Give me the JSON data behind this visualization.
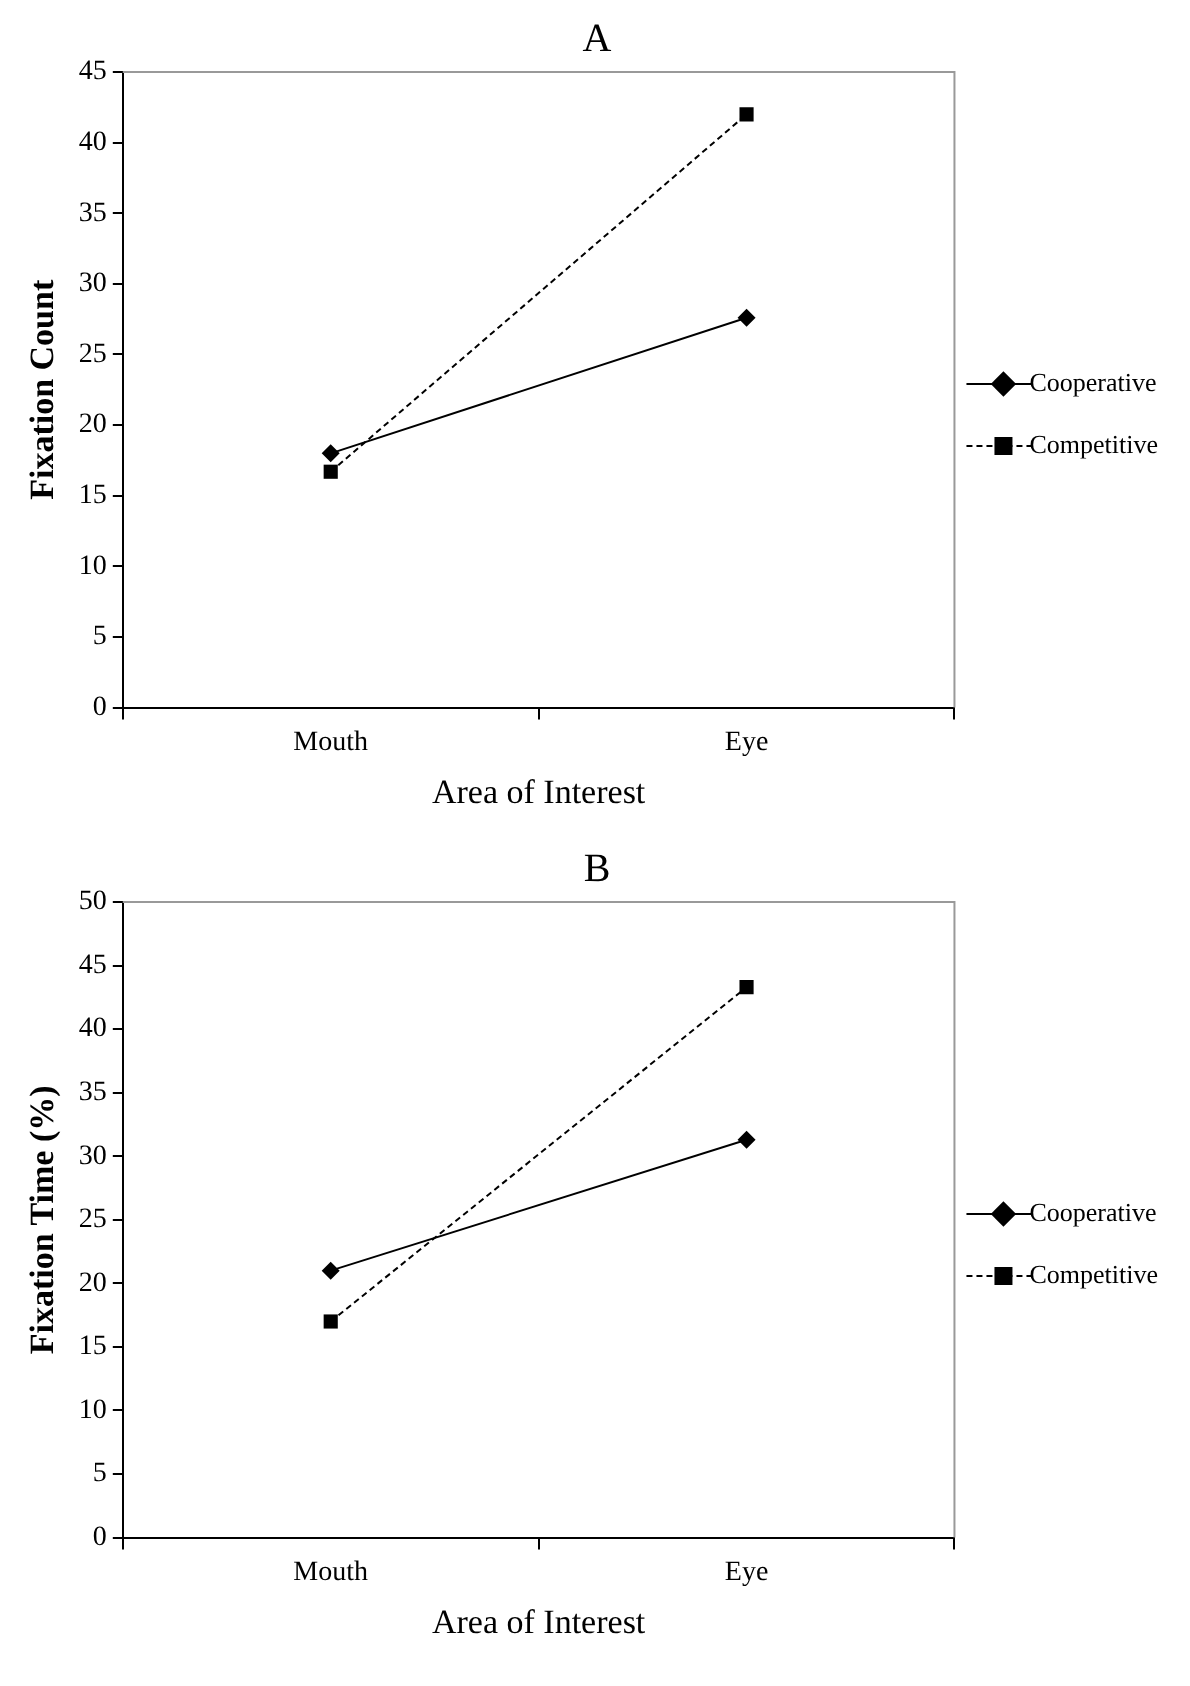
{
  "chart_data": [
    {
      "type": "line",
      "title": "A",
      "xlabel": "Area of Interest",
      "ylabel": "Fixation Count",
      "categories": [
        "Mouth",
        "Eye"
      ],
      "ylim": [
        0,
        45
      ],
      "yticks": [
        0,
        5,
        10,
        15,
        20,
        25,
        30,
        35,
        40,
        45
      ],
      "grid": false,
      "legend": "right",
      "series": [
        {
          "name": "Cooperative",
          "color": "#000000",
          "values": [
            18,
            27.6
          ],
          "marker": "diamond",
          "line_style": "solid"
        },
        {
          "name": "Competitive",
          "color": "#000000",
          "values": [
            16.7,
            42
          ],
          "marker": "square",
          "line_style": "dashed"
        }
      ]
    },
    {
      "type": "line",
      "title": "B",
      "xlabel": "Area of Interest",
      "ylabel": "Fixation Time (%)",
      "categories": [
        "Mouth",
        "Eye"
      ],
      "ylim": [
        0,
        50
      ],
      "yticks": [
        0,
        5,
        10,
        15,
        20,
        25,
        30,
        35,
        40,
        45,
        50
      ],
      "grid": false,
      "legend": "right",
      "series": [
        {
          "name": "Cooperative",
          "color": "#000000",
          "values": [
            21,
            31.3
          ],
          "marker": "diamond",
          "line_style": "solid"
        },
        {
          "name": "Competitive",
          "color": "#000000",
          "values": [
            17,
            43.3
          ],
          "marker": "square",
          "line_style": "dashed"
        }
      ]
    }
  ]
}
